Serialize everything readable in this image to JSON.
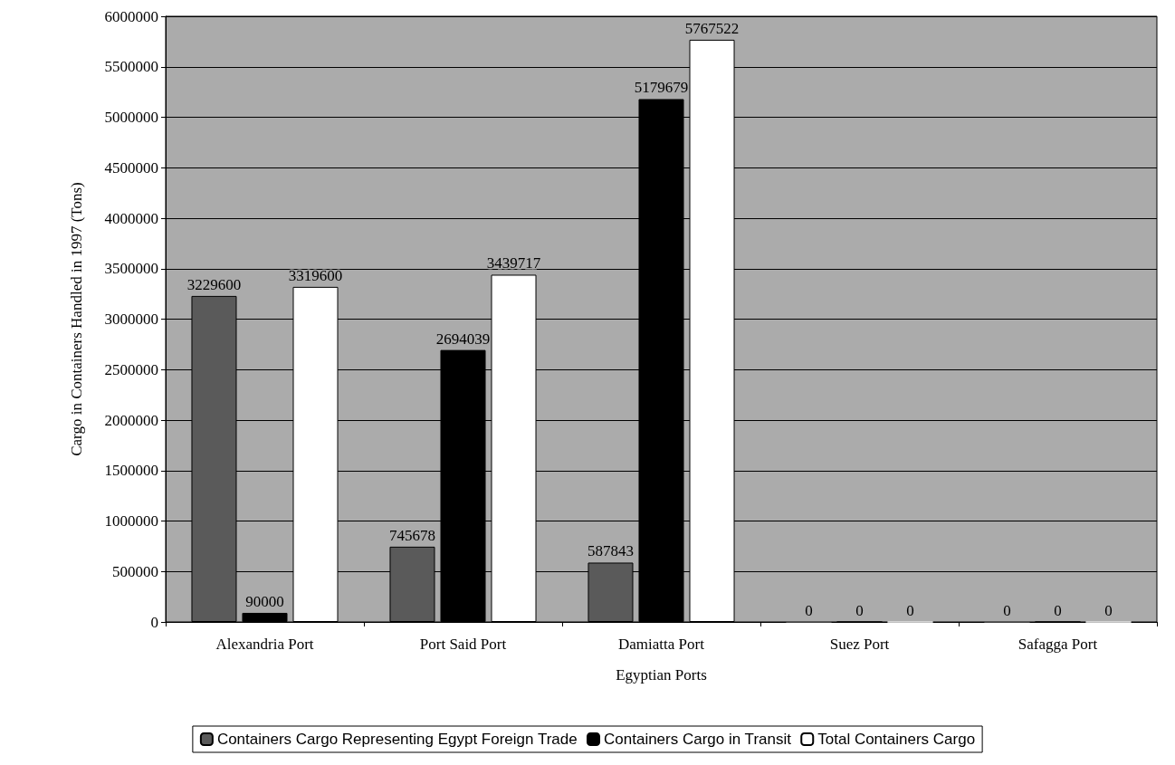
{
  "chart_data": {
    "type": "bar",
    "xlabel": "Egyptian Ports",
    "ylabel": "Cargo in Containers Handled in 1997 (Tons)",
    "categories": [
      "Alexandria Port",
      "Port Said Port",
      "Damiatta Port",
      "Suez Port",
      "Safagga Port"
    ],
    "series": [
      {
        "name": "Containers Cargo Representing Egypt Foreign Trade",
        "color": "#5a5a5a",
        "values": [
          3229600,
          745678,
          587843,
          0,
          0
        ]
      },
      {
        "name": "Containers Cargo in Transit",
        "color": "#000000",
        "values": [
          90000,
          2694039,
          5179679,
          0,
          0
        ]
      },
      {
        "name": "Total Containers Cargo",
        "color": "#ffffff",
        "values": [
          3319600,
          3439717,
          5767522,
          0,
          0
        ]
      }
    ],
    "ylim": [
      0,
      6000000
    ],
    "yticks": [
      0,
      500000,
      1000000,
      1500000,
      2000000,
      2500000,
      3000000,
      3500000,
      4000000,
      4500000,
      5000000,
      5500000,
      6000000
    ],
    "grid": "y",
    "legend": "bottom",
    "data_labels": true
  }
}
